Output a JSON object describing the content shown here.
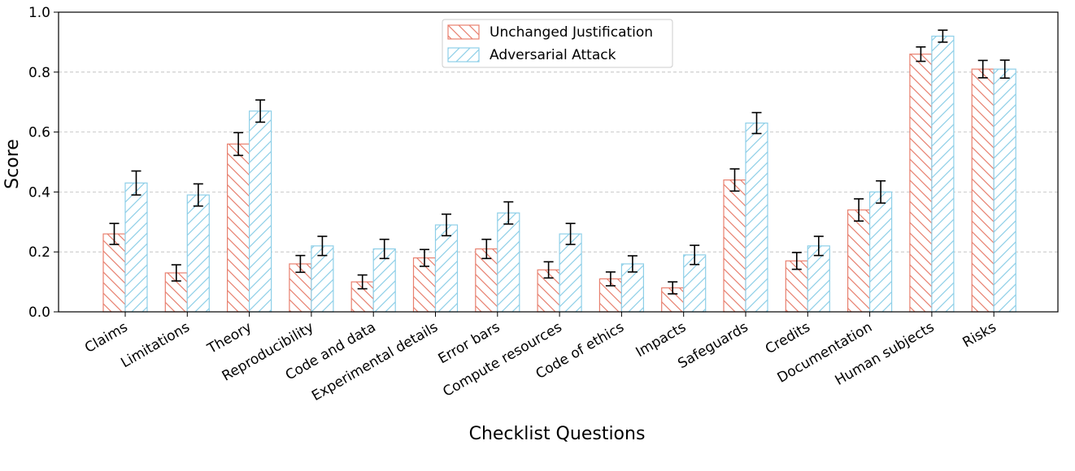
{
  "chart_data": {
    "type": "bar",
    "title": "",
    "xlabel": "Checklist Questions",
    "ylabel": "Score",
    "ylim": [
      0,
      1.0
    ],
    "yticks": [
      "0.0",
      "0.2",
      "0.4",
      "0.6",
      "0.8",
      "1.0"
    ],
    "grid": "horizontal dashed",
    "legend_position": "top-center",
    "categories": [
      "Claims",
      "Limitations",
      "Theory",
      "Reproducibility",
      "Code and data",
      "Experimental details",
      "Error bars",
      "Compute resources",
      "Code of ethics",
      "Impacts",
      "Safeguards",
      "Credits",
      "Documentation",
      "Human subjects",
      "Risks"
    ],
    "series": [
      {
        "name": "Unchanged Justification",
        "color": "#e8806f",
        "hatch": "backslash",
        "values": [
          0.26,
          0.13,
          0.56,
          0.16,
          0.1,
          0.18,
          0.21,
          0.14,
          0.11,
          0.08,
          0.44,
          0.17,
          0.34,
          0.86,
          0.81
        ],
        "errors": [
          0.035,
          0.027,
          0.038,
          0.028,
          0.023,
          0.028,
          0.032,
          0.027,
          0.023,
          0.02,
          0.037,
          0.028,
          0.037,
          0.024,
          0.029
        ]
      },
      {
        "name": "Adversarial Attack",
        "color": "#8ecfe8",
        "hatch": "forwardslash",
        "values": [
          0.43,
          0.39,
          0.67,
          0.22,
          0.21,
          0.29,
          0.33,
          0.26,
          0.16,
          0.19,
          0.63,
          0.22,
          0.4,
          0.92,
          0.81
        ],
        "errors": [
          0.04,
          0.037,
          0.037,
          0.032,
          0.032,
          0.036,
          0.037,
          0.035,
          0.027,
          0.032,
          0.035,
          0.032,
          0.037,
          0.02,
          0.03
        ]
      }
    ]
  }
}
